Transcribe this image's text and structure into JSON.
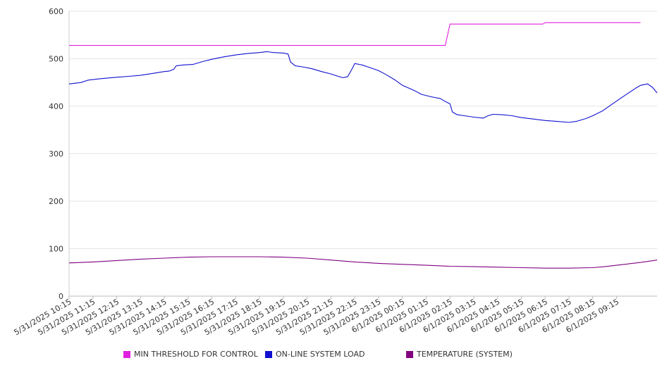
{
  "chart_data": {
    "type": "line",
    "title": "",
    "xlabel": "",
    "ylabel": "",
    "ylim": [
      0,
      600
    ],
    "y_ticks": [
      "0",
      "100",
      "200",
      "300",
      "400",
      "500",
      "600"
    ],
    "x_tick_labels": [
      "5/31/2025 10:15",
      "5/31/2025 11:15",
      "5/31/2025 12:15",
      "5/31/2025 13:15",
      "5/31/2025 14:15",
      "5/31/2025 15:15",
      "5/31/2025 16:15",
      "5/31/2025 17:15",
      "5/31/2025 18:15",
      "5/31/2025 19:15",
      "5/31/2025 20:15",
      "5/31/2025 21:15",
      "5/31/2025 22:15",
      "5/31/2025 23:15",
      "6/1/2025 00:15",
      "6/1/2025 01:15",
      "6/1/2025 02:15",
      "6/1/2025 03:15",
      "6/1/2025 04:15",
      "6/1/2025 05:15",
      "6/1/2025 06:15",
      "6/1/2025 07:15",
      "6/1/2025 08:15",
      "6/1/2025 09:15"
    ],
    "x_range_hours": [
      0,
      24
    ],
    "grid": true,
    "legend_position": "bottom",
    "series": [
      {
        "name": "MIN THRESHOLD FOR CONTROL",
        "color": "#e020e0",
        "points": [
          [
            0,
            528
          ],
          [
            15.8,
            528
          ],
          [
            16.0,
            573
          ],
          [
            19.9,
            573
          ],
          [
            20.0,
            576
          ],
          [
            24.0,
            576
          ]
        ]
      },
      {
        "name": "ON-LINE SYSTEM LOAD",
        "color": "#1010d0",
        "points": [
          [
            0,
            447
          ],
          [
            0.5,
            450
          ],
          [
            0.8,
            455
          ],
          [
            1.3,
            458
          ],
          [
            2.0,
            461
          ],
          [
            2.5,
            463
          ],
          [
            3.0,
            465
          ],
          [
            3.5,
            469
          ],
          [
            4.0,
            473
          ],
          [
            4.2,
            474
          ],
          [
            4.4,
            478
          ],
          [
            4.5,
            485
          ],
          [
            4.8,
            487
          ],
          [
            5.2,
            488
          ],
          [
            5.6,
            494
          ],
          [
            6.0,
            499
          ],
          [
            6.5,
            504
          ],
          [
            7.0,
            508
          ],
          [
            7.5,
            511
          ],
          [
            8.0,
            513
          ],
          [
            8.3,
            515
          ],
          [
            8.6,
            513
          ],
          [
            9.0,
            512
          ],
          [
            9.2,
            510
          ],
          [
            9.3,
            493
          ],
          [
            9.5,
            485
          ],
          [
            9.8,
            483
          ],
          [
            10.2,
            479
          ],
          [
            10.6,
            473
          ],
          [
            11.0,
            468
          ],
          [
            11.3,
            463
          ],
          [
            11.5,
            460
          ],
          [
            11.7,
            462
          ],
          [
            11.9,
            480
          ],
          [
            12.0,
            490
          ],
          [
            12.3,
            487
          ],
          [
            12.6,
            482
          ],
          [
            13.0,
            475
          ],
          [
            13.3,
            467
          ],
          [
            13.7,
            455
          ],
          [
            14.0,
            444
          ],
          [
            14.5,
            433
          ],
          [
            14.8,
            425
          ],
          [
            15.2,
            420
          ],
          [
            15.6,
            416
          ],
          [
            15.8,
            410
          ],
          [
            16.0,
            405
          ],
          [
            16.1,
            388
          ],
          [
            16.3,
            382
          ],
          [
            16.6,
            380
          ],
          [
            17.0,
            377
          ],
          [
            17.4,
            375
          ],
          [
            17.6,
            380
          ],
          [
            17.8,
            383
          ],
          [
            18.2,
            382
          ],
          [
            18.6,
            380
          ],
          [
            19.0,
            376
          ],
          [
            19.5,
            373
          ],
          [
            20.0,
            370
          ],
          [
            20.5,
            368
          ],
          [
            21.0,
            366
          ],
          [
            21.3,
            368
          ],
          [
            21.7,
            374
          ],
          [
            22.0,
            380
          ],
          [
            22.4,
            390
          ],
          [
            22.8,
            404
          ],
          [
            23.2,
            418
          ],
          [
            23.5,
            428
          ],
          [
            23.8,
            438
          ],
          [
            24.0,
            444
          ],
          [
            24.3,
            447
          ],
          [
            24.5,
            440
          ],
          [
            24.7,
            428
          ]
        ]
      },
      {
        "name": "TEMPERATURE (SYSTEM)",
        "color": "#800080",
        "points": [
          [
            0,
            70
          ],
          [
            1,
            72
          ],
          [
            2,
            75
          ],
          [
            3,
            78
          ],
          [
            4,
            80
          ],
          [
            5,
            82
          ],
          [
            6,
            83
          ],
          [
            7,
            83
          ],
          [
            8,
            83
          ],
          [
            9,
            82
          ],
          [
            10,
            80
          ],
          [
            11,
            76
          ],
          [
            12,
            72
          ],
          [
            13,
            69
          ],
          [
            14,
            67
          ],
          [
            15,
            65
          ],
          [
            16,
            63
          ],
          [
            17,
            62
          ],
          [
            18,
            61
          ],
          [
            19,
            60
          ],
          [
            20,
            59
          ],
          [
            21,
            59
          ],
          [
            22,
            60
          ],
          [
            22.5,
            62
          ],
          [
            23,
            65
          ],
          [
            23.5,
            68
          ],
          [
            24,
            71
          ],
          [
            24.7,
            76
          ]
        ]
      }
    ]
  }
}
